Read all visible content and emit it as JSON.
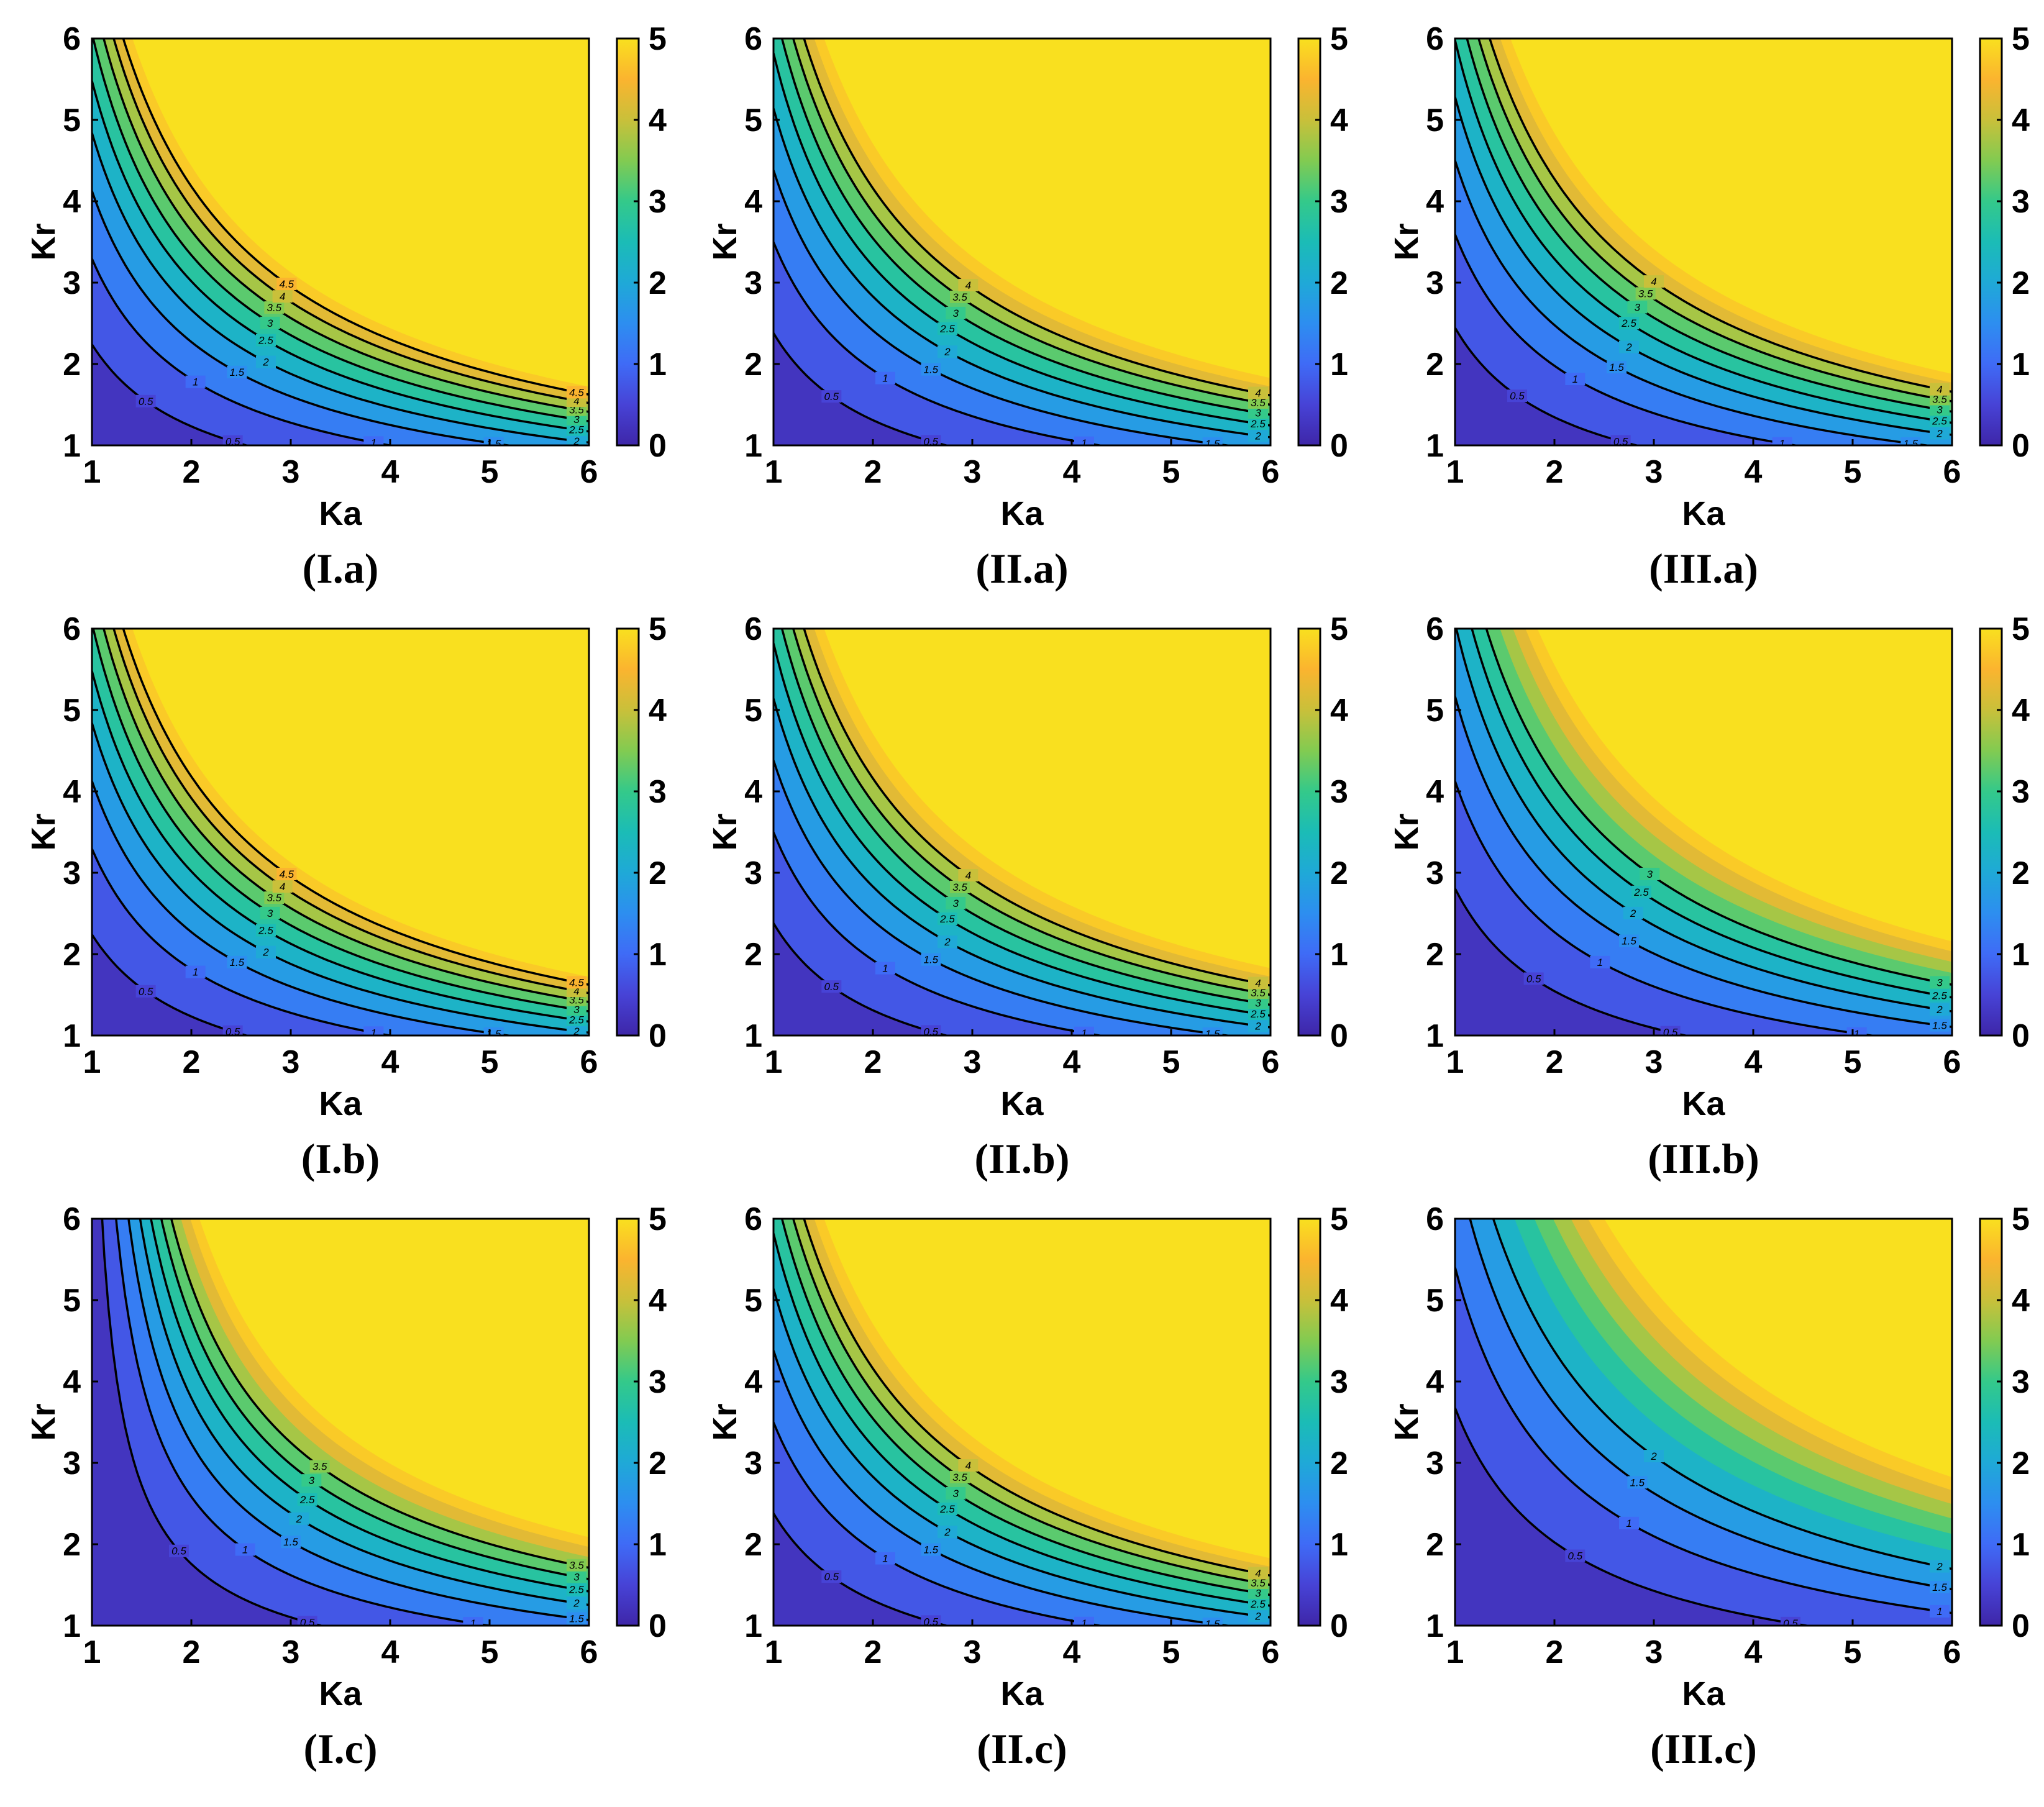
{
  "figure": {
    "colorbar_ticks": [
      "0",
      "1",
      "2",
      "3",
      "4",
      "5"
    ],
    "colormap": [
      "#3e26a8",
      "#4743d6",
      "#3f6bf6",
      "#2d8ef0",
      "#1fa9d7",
      "#1bbcb6",
      "#34c98a",
      "#82cb51",
      "#c9c03a",
      "#fbb42f",
      "#f9e01f"
    ],
    "contour_line_color": "#000000"
  },
  "chart_data": [
    {
      "type": "contour",
      "panel": "I.a",
      "caption": "(I.a)",
      "xlabel": "Ka",
      "ylabel": "Kr",
      "xlim": [
        1,
        6
      ],
      "ylim": [
        1,
        6
      ],
      "clim": [
        0,
        5
      ],
      "xticks": [
        "1",
        "2",
        "3",
        "4",
        "5",
        "6"
      ],
      "yticks": [
        "1",
        "2",
        "3",
        "4",
        "5",
        "6"
      ],
      "level_step": 0.5,
      "approx_model": {
        "a": 0.117,
        "p": 1.55,
        "q": 1.8,
        "shift": 0.0
      },
      "contour_levels": [
        0.5,
        1,
        1.5,
        2,
        2.5,
        3,
        3.5,
        4,
        4.5
      ]
    },
    {
      "type": "contour",
      "panel": "II.a",
      "caption": "(II.a)",
      "xlabel": "Ka",
      "ylabel": "Kr",
      "xlim": [
        1,
        6
      ],
      "ylim": [
        1,
        6
      ],
      "clim": [
        0,
        5
      ],
      "xticks": [
        "1",
        "2",
        "3",
        "4",
        "5",
        "6"
      ],
      "yticks": [
        "1",
        "2",
        "3",
        "4",
        "5",
        "6"
      ],
      "level_step": 0.5,
      "approx_model": {
        "a": 0.105,
        "p": 1.55,
        "q": 1.8,
        "shift": 0.0
      },
      "contour_levels": [
        0.5,
        1,
        1.5,
        2,
        2.5,
        3,
        3.5,
        4
      ]
    },
    {
      "type": "contour",
      "panel": "III.a",
      "caption": "(III.a)",
      "xlabel": "Ka",
      "ylabel": "Kr",
      "xlim": [
        1,
        6
      ],
      "ylim": [
        1,
        6
      ],
      "clim": [
        0,
        5
      ],
      "xticks": [
        "1",
        "2",
        "3",
        "4",
        "5",
        "6"
      ],
      "yticks": [
        "1",
        "2",
        "3",
        "4",
        "5",
        "6"
      ],
      "level_step": 0.5,
      "approx_model": {
        "a": 0.1,
        "p": 1.55,
        "q": 1.8,
        "shift": 0.0
      },
      "contour_levels": [
        0.5,
        1,
        1.5,
        2,
        2.5,
        3,
        3.5,
        4
      ]
    },
    {
      "type": "contour",
      "panel": "I.b",
      "caption": "(I.b)",
      "xlabel": "Ka",
      "ylabel": "Kr",
      "xlim": [
        1,
        6
      ],
      "ylim": [
        1,
        6
      ],
      "clim": [
        0,
        5
      ],
      "xticks": [
        "1",
        "2",
        "3",
        "4",
        "5",
        "6"
      ],
      "yticks": [
        "1",
        "2",
        "3",
        "4",
        "5",
        "6"
      ],
      "level_step": 0.5,
      "approx_model": {
        "a": 0.117,
        "p": 1.55,
        "q": 1.8,
        "shift": 0.0
      },
      "contour_levels": [
        0.5,
        1,
        1.5,
        2,
        2.5,
        3,
        3.5,
        4,
        4.5
      ]
    },
    {
      "type": "contour",
      "panel": "II.b",
      "caption": "(II.b)",
      "xlabel": "Ka",
      "ylabel": "Kr",
      "xlim": [
        1,
        6
      ],
      "ylim": [
        1,
        6
      ],
      "clim": [
        0,
        5
      ],
      "xticks": [
        "1",
        "2",
        "3",
        "4",
        "5",
        "6"
      ],
      "yticks": [
        "1",
        "2",
        "3",
        "4",
        "5",
        "6"
      ],
      "level_step": 0.5,
      "approx_model": {
        "a": 0.105,
        "p": 1.55,
        "q": 1.8,
        "shift": 0.0
      },
      "contour_levels": [
        0.5,
        1,
        1.5,
        2,
        2.5,
        3,
        3.5,
        4
      ]
    },
    {
      "type": "contour",
      "panel": "III.b",
      "caption": "(III.b)",
      "xlabel": "Ka",
      "ylabel": "Kr",
      "xlim": [
        1,
        6
      ],
      "ylim": [
        1,
        6
      ],
      "clim": [
        0,
        5
      ],
      "xticks": [
        "1",
        "2",
        "3",
        "4",
        "5",
        "6"
      ],
      "yticks": [
        "1",
        "2",
        "3",
        "4",
        "5",
        "6"
      ],
      "level_step": 0.5,
      "approx_model": {
        "a": 0.078,
        "p": 1.55,
        "q": 1.8,
        "shift": 0.0
      },
      "contour_levels": [
        0.5,
        1,
        1.5,
        2,
        2.5,
        3
      ]
    },
    {
      "type": "contour",
      "panel": "I.c",
      "caption": "(I.c)",
      "xlabel": "Ka",
      "ylabel": "Kr",
      "xlim": [
        1,
        6
      ],
      "ylim": [
        1,
        6
      ],
      "clim": [
        0,
        5
      ],
      "xticks": [
        "1",
        "2",
        "3",
        "4",
        "5",
        "6"
      ],
      "yticks": [
        "1",
        "2",
        "3",
        "4",
        "5",
        "6"
      ],
      "level_step": 0.5,
      "approx_model": {
        "a": 0.16,
        "p": 1.3,
        "q": 1.8,
        "shift": 0.9
      },
      "contour_levels": [
        0.5,
        1,
        1.5,
        2,
        2.5,
        3,
        3.5
      ]
    },
    {
      "type": "contour",
      "panel": "II.c",
      "caption": "(II.c)",
      "xlabel": "Ka",
      "ylabel": "Kr",
      "xlim": [
        1,
        6
      ],
      "ylim": [
        1,
        6
      ],
      "clim": [
        0,
        5
      ],
      "xticks": [
        "1",
        "2",
        "3",
        "4",
        "5",
        "6"
      ],
      "yticks": [
        "1",
        "2",
        "3",
        "4",
        "5",
        "6"
      ],
      "level_step": 0.5,
      "approx_model": {
        "a": 0.105,
        "p": 1.55,
        "q": 1.8,
        "shift": 0.0
      },
      "contour_levels": [
        0.5,
        1,
        1.5,
        2,
        2.5,
        3,
        3.5,
        4
      ]
    },
    {
      "type": "contour",
      "panel": "III.c",
      "caption": "(III.c)",
      "xlabel": "Ka",
      "ylabel": "Kr",
      "xlim": [
        1,
        6
      ],
      "ylim": [
        1,
        6
      ],
      "clim": [
        0,
        5
      ],
      "xticks": [
        "1",
        "2",
        "3",
        "4",
        "5",
        "6"
      ],
      "yticks": [
        "1",
        "2",
        "3",
        "4",
        "5",
        "6"
      ],
      "level_step": 0.5,
      "approx_model": {
        "a": 0.048,
        "p": 1.55,
        "q": 1.8,
        "shift": 0.0
      },
      "contour_levels": [
        0.5,
        1,
        1.5,
        2
      ]
    }
  ]
}
